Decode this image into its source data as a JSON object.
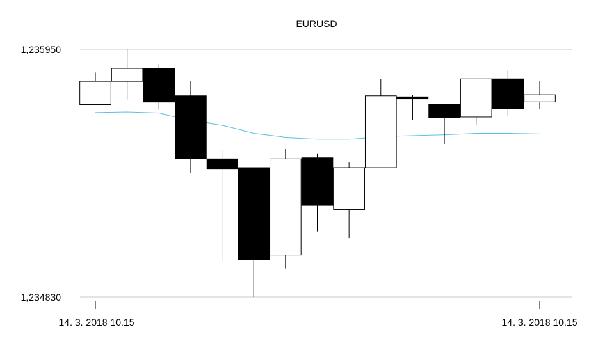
{
  "chart_data": {
    "type": "candlestick",
    "title": "EURUSD",
    "y_ticks": [
      "1,235950",
      "1,234830"
    ],
    "ylim": [
      1.23483,
      1.23595
    ],
    "x_ticks": [
      {
        "label": "14. 3. 2018 10.15",
        "index": 0
      },
      {
        "label": "14. 3. 2018 10.15",
        "index": 14
      }
    ],
    "grid": {
      "horizontal": true,
      "vertical": false
    },
    "colors": {
      "up": "#ffffff",
      "down": "#000000",
      "outline": "#000000",
      "moving_average": "#5bc0de",
      "grid": "#c8c8c8"
    },
    "candles": [
      {
        "open": 1.2357,
        "high": 1.235845,
        "low": 1.235705,
        "close": 1.235805
      },
      {
        "open": 1.235805,
        "high": 1.23595,
        "low": 1.235725,
        "close": 1.235865
      },
      {
        "open": 1.235865,
        "high": 1.235882,
        "low": 1.235678,
        "close": 1.235712
      },
      {
        "open": 1.23574,
        "high": 1.235808,
        "low": 1.23539,
        "close": 1.235455
      },
      {
        "open": 1.235455,
        "high": 1.235496,
        "low": 1.234993,
        "close": 1.23541
      },
      {
        "open": 1.235415,
        "high": 1.235415,
        "low": 1.23483,
        "close": 1.235
      },
      {
        "open": 1.23502,
        "high": 1.2355,
        "low": 1.23496,
        "close": 1.235455
      },
      {
        "open": 1.23546,
        "high": 1.235479,
        "low": 1.235127,
        "close": 1.235245
      },
      {
        "open": 1.235225,
        "high": 1.23544,
        "low": 1.235097,
        "close": 1.235415
      },
      {
        "open": 1.235415,
        "high": 1.235815,
        "low": 1.235415,
        "close": 1.23574
      },
      {
        "open": 1.235735,
        "high": 1.235745,
        "low": 1.235632,
        "close": 1.235728
      },
      {
        "open": 1.235703,
        "high": 1.235703,
        "low": 1.235522,
        "close": 1.235642
      },
      {
        "open": 1.235645,
        "high": 1.235817,
        "low": 1.23561,
        "close": 1.235817
      },
      {
        "open": 1.235817,
        "high": 1.235855,
        "low": 1.235649,
        "close": 1.235682
      },
      {
        "open": 1.235713,
        "high": 1.235808,
        "low": 1.235682,
        "close": 1.235745
      }
    ],
    "moving_average": [
      1.235664,
      1.235667,
      1.235662,
      1.23563,
      1.235607,
      1.235571,
      1.235552,
      1.235545,
      1.235545,
      1.235555,
      1.23556,
      1.235564,
      1.235571,
      1.235571,
      1.235568
    ]
  }
}
